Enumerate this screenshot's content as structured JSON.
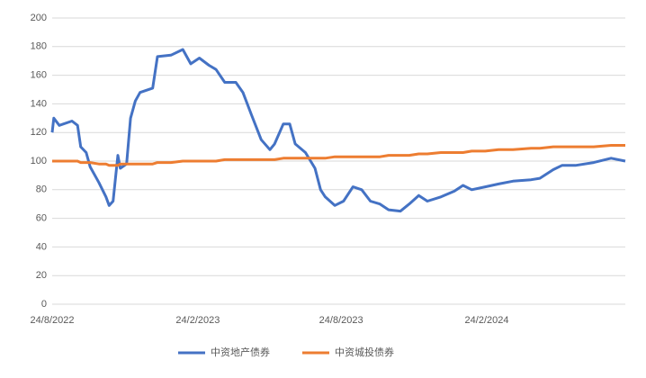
{
  "chart_data": {
    "type": "line",
    "x": [
      "2022-08-24",
      "2022-08-26",
      "2022-09-02",
      "2022-09-18",
      "2022-09-25",
      "2022-09-29",
      "2022-10-06",
      "2022-10-11",
      "2022-10-22",
      "2022-10-31",
      "2022-11-04",
      "2022-11-09",
      "2022-11-15",
      "2022-11-18",
      "2022-11-26",
      "2022-12-01",
      "2022-12-07",
      "2022-12-13",
      "2022-12-29",
      "2023-01-04",
      "2023-01-21",
      "2023-02-05",
      "2023-02-15",
      "2023-02-26",
      "2023-03-10",
      "2023-03-19",
      "2023-03-30",
      "2023-04-13",
      "2023-04-22",
      "2023-05-03",
      "2023-05-15",
      "2023-05-26",
      "2023-06-01",
      "2023-06-12",
      "2023-06-20",
      "2023-06-27",
      "2023-07-10",
      "2023-07-22",
      "2023-07-29",
      "2023-08-04",
      "2023-08-16",
      "2023-08-27",
      "2023-09-08",
      "2023-09-19",
      "2023-09-30",
      "2023-10-12",
      "2023-10-23",
      "2023-11-07",
      "2023-11-18",
      "2023-11-30",
      "2023-12-11",
      "2023-12-28",
      "2024-01-14",
      "2024-01-25",
      "2024-02-05",
      "2024-02-22",
      "2024-03-10",
      "2024-03-28",
      "2024-04-20",
      "2024-05-01",
      "2024-05-18",
      "2024-05-29",
      "2024-06-15",
      "2024-07-08",
      "2024-07-30",
      "2024-08-17"
    ],
    "series": [
      {
        "name": "中资地产债券",
        "color": "#4472c4",
        "values": [
          120,
          130,
          125,
          128,
          125,
          110,
          106,
          96,
          85,
          75,
          69,
          72,
          104,
          95,
          98,
          130,
          142,
          148,
          151,
          173,
          174,
          178,
          168,
          172,
          167,
          164,
          155,
          155,
          148,
          132,
          115,
          108,
          112,
          126,
          126,
          112,
          106,
          95,
          80,
          75,
          69,
          72,
          82,
          80,
          72,
          70,
          66,
          65,
          70,
          76,
          72,
          75,
          79,
          83,
          80,
          82,
          84,
          86,
          87,
          88,
          94,
          97,
          97,
          99,
          102,
          100
        ]
      },
      {
        "name": "中资城投债券",
        "color": "#ed7d31",
        "values": [
          100,
          100,
          100,
          100,
          100,
          99,
          99,
          99,
          98,
          98,
          97,
          97,
          97,
          98,
          98,
          98,
          98,
          98,
          98,
          99,
          99,
          100,
          100,
          100,
          100,
          100,
          101,
          101,
          101,
          101,
          101,
          101,
          101,
          102,
          102,
          102,
          102,
          102,
          102,
          102,
          103,
          103,
          103,
          103,
          103,
          103,
          104,
          104,
          104,
          105,
          105,
          106,
          106,
          106,
          107,
          107,
          108,
          108,
          109,
          109,
          110,
          110,
          110,
          110,
          111,
          111
        ]
      }
    ],
    "xlim": [
      "2022-08-24",
      "2024-08-17"
    ],
    "xticks": [
      {
        "value": "2022-08-24",
        "label": "24/8/2022"
      },
      {
        "value": "2023-02-24",
        "label": "24/2/2023"
      },
      {
        "value": "2023-08-24",
        "label": "24/8/2023"
      },
      {
        "value": "2024-02-24",
        "label": "24/2/2024"
      }
    ],
    "ylim": [
      0,
      200
    ],
    "yticks": [
      0,
      20,
      40,
      60,
      80,
      100,
      120,
      140,
      160,
      180,
      200
    ],
    "grid": true,
    "legend": "bottom"
  }
}
